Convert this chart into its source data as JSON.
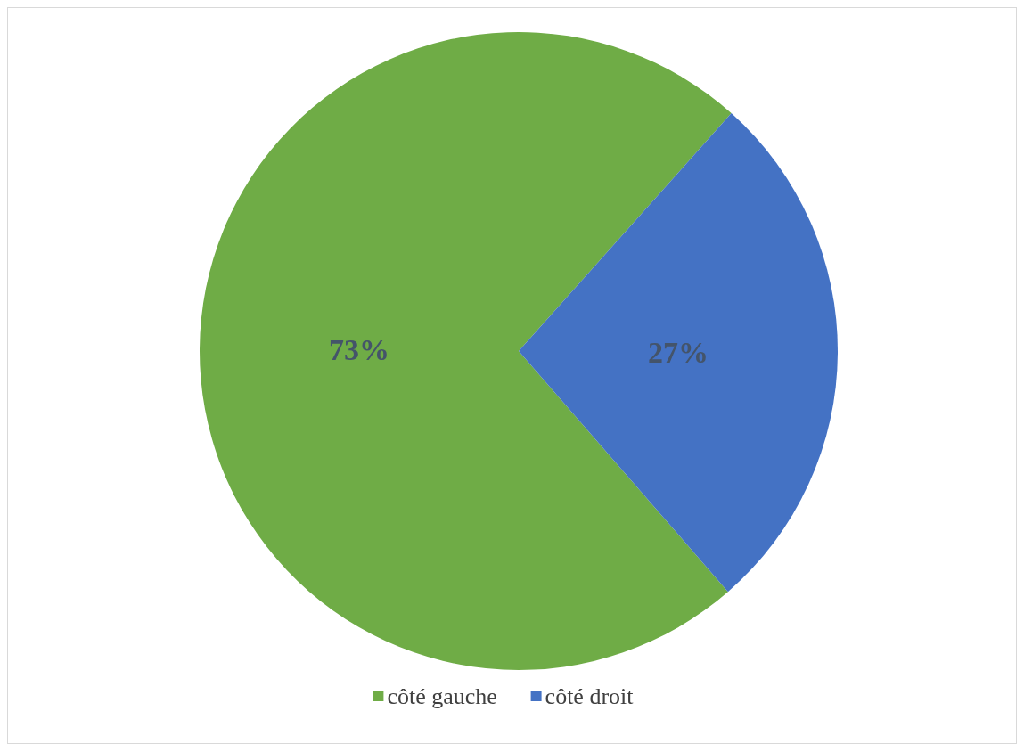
{
  "chart_data": {
    "type": "pie",
    "categories": [
      "côté gauche",
      "côté droit"
    ],
    "values": [
      73,
      27
    ],
    "colors": [
      "#6fac46",
      "#4472c4"
    ],
    "value_labels": [
      "73%",
      "27%"
    ],
    "legend": "bottom"
  }
}
